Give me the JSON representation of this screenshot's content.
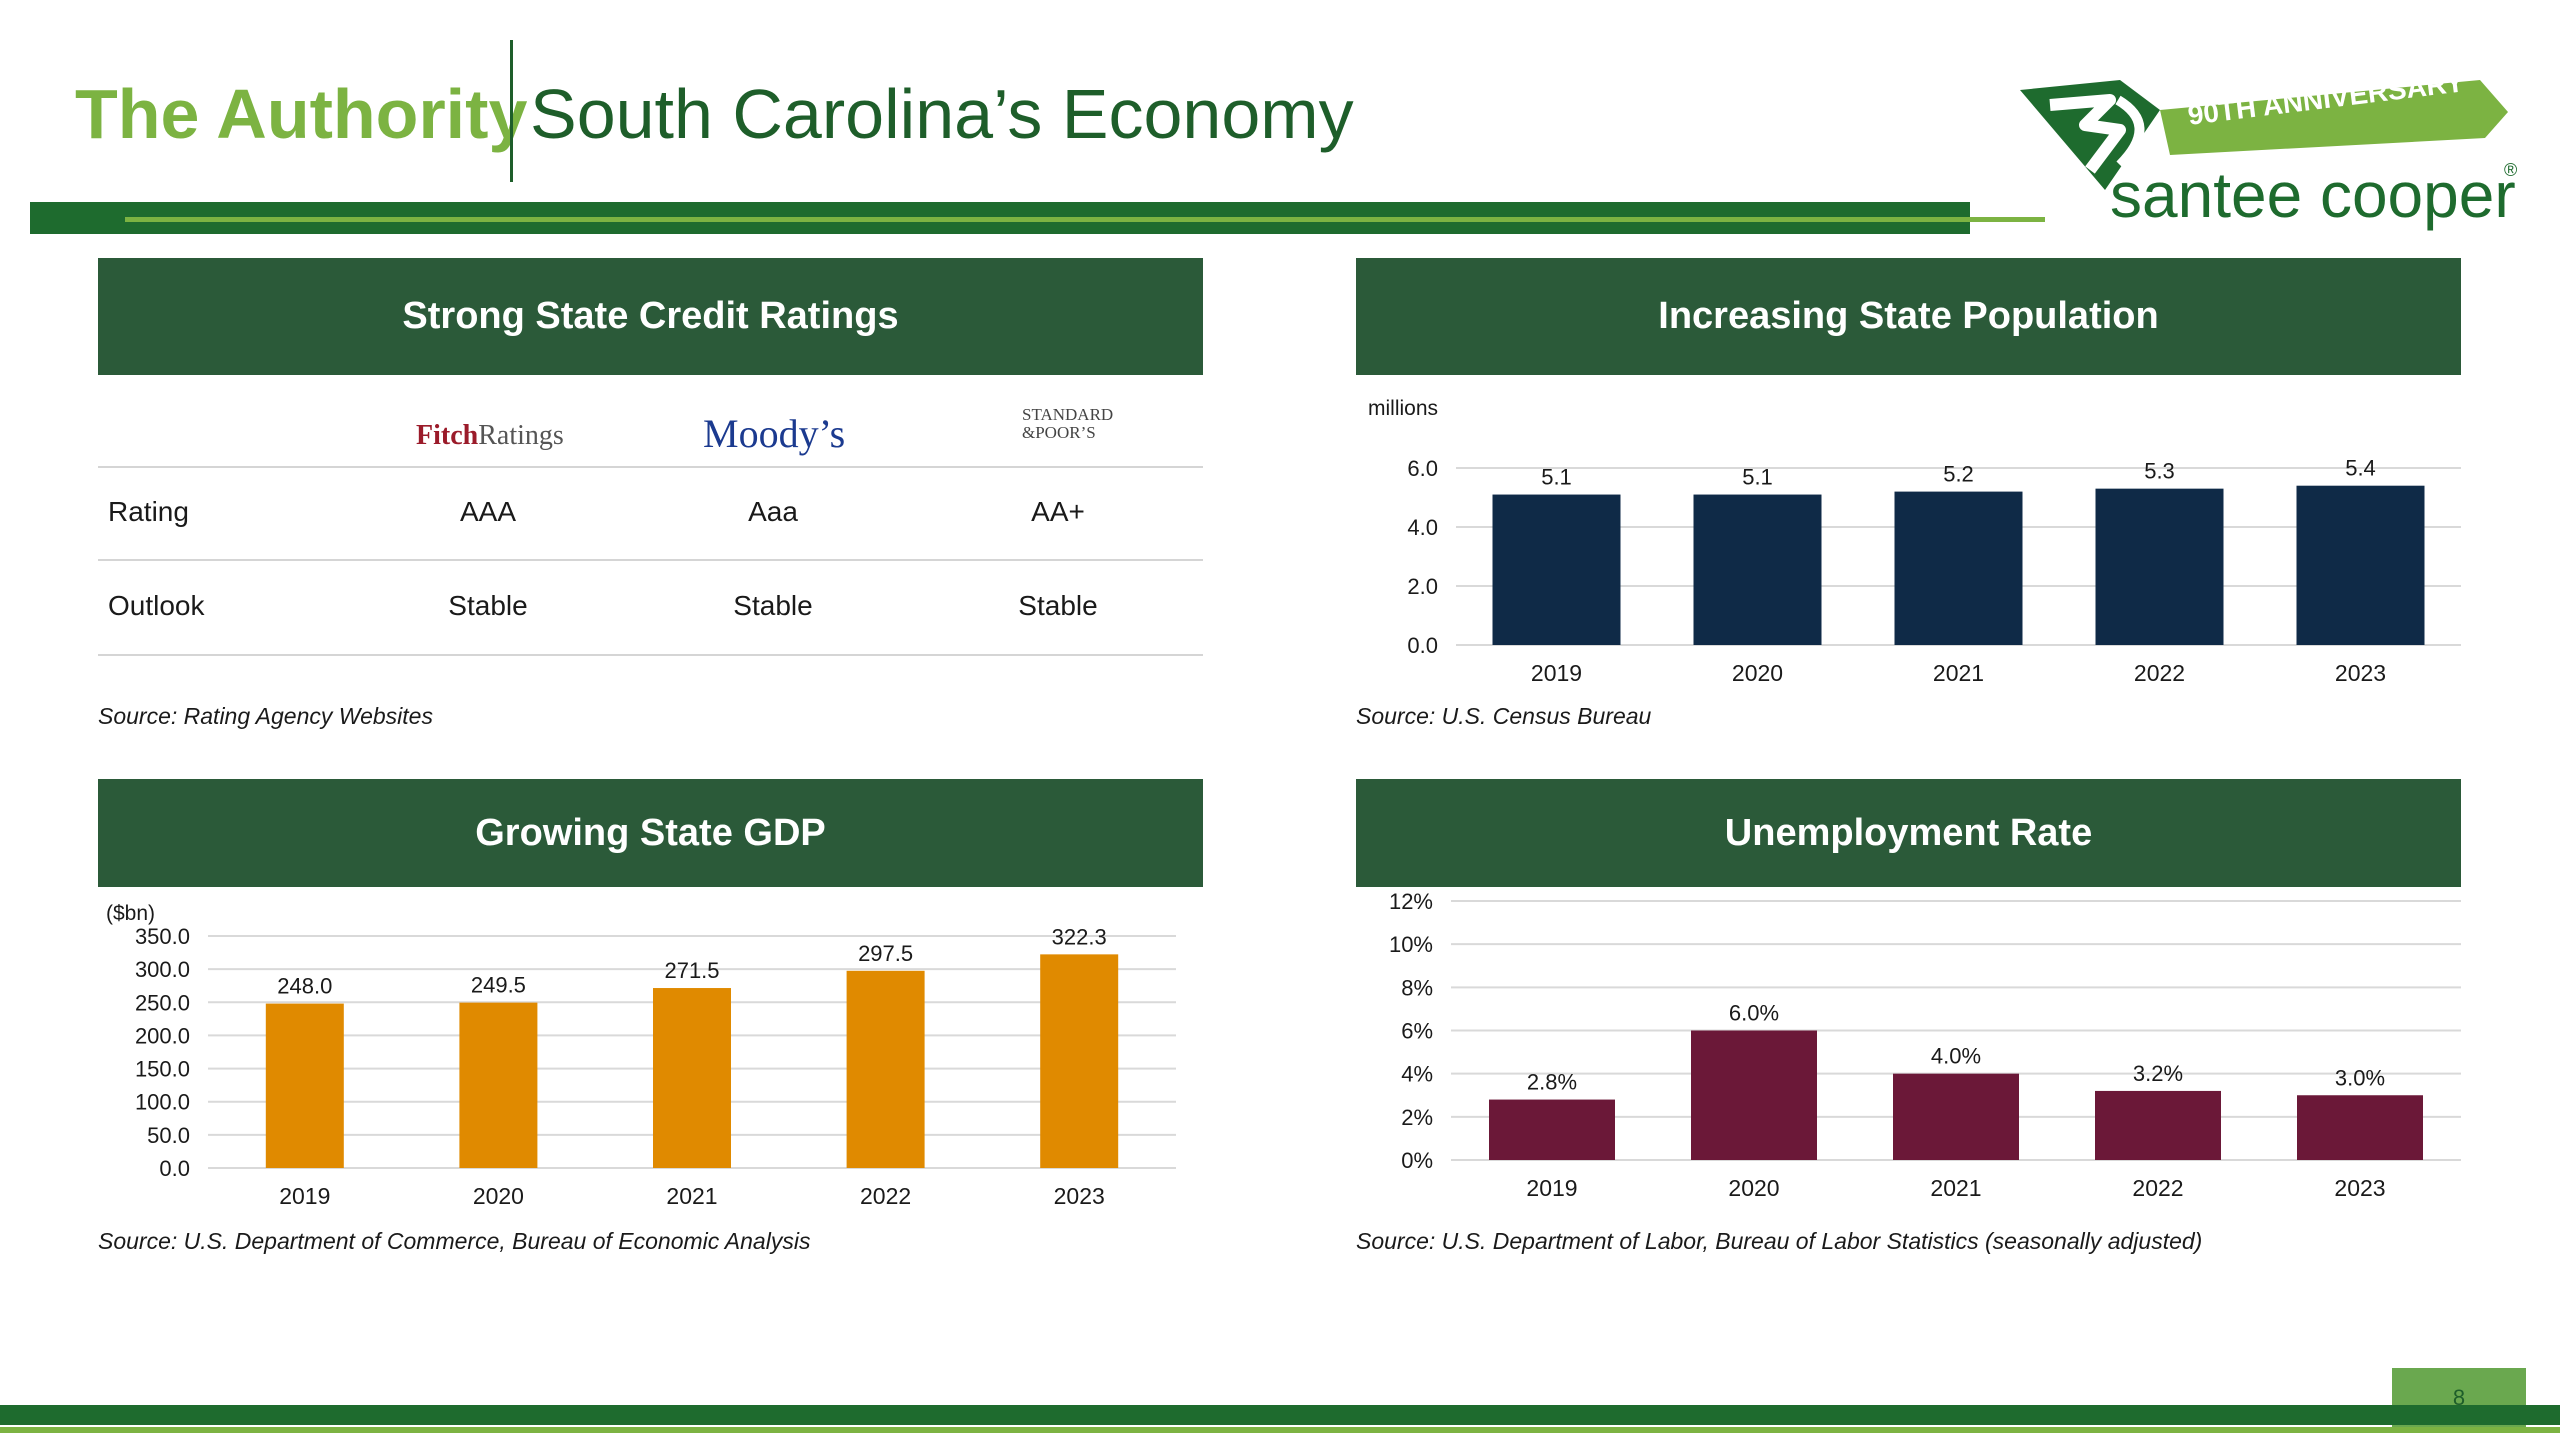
{
  "header": {
    "brand": "The Authority",
    "title": "South Carolina’s Economy"
  },
  "logo": {
    "ribbon": "90TH ANNIVERSARY",
    "name": "santee cooper",
    "reg": "®",
    "colors": {
      "green": "#1e6b2e",
      "light_green": "#7cb342"
    }
  },
  "panels": {
    "credit": {
      "title": "Strong State Credit Ratings",
      "agencies": {
        "fitch_a": "Fitch",
        "fitch_b": "Ratings",
        "moodys": "Moody’s",
        "sp_line1": "STANDARD",
        "sp_line2": "&POOR’S"
      },
      "rows": [
        {
          "label": "Rating",
          "values": [
            "AAA",
            "Aaa",
            "AA+"
          ]
        },
        {
          "label": "Outlook",
          "values": [
            "Stable",
            "Stable",
            "Stable"
          ]
        }
      ],
      "source": "Source: Rating Agency Websites"
    },
    "population": {
      "title": "Increasing State Population",
      "source": "Source: U.S. Census Bureau"
    },
    "gdp": {
      "title": "Growing State GDP",
      "source": "Source: U.S. Department of Commerce, Bureau of Economic Analysis"
    },
    "unemployment": {
      "title": "Unemployment Rate",
      "source": "Source: U.S. Department of Labor, Bureau of Labor Statistics (seasonally adjusted)"
    }
  },
  "page_number": "8",
  "chart_data": [
    {
      "id": "population",
      "type": "bar",
      "title": "Increasing State Population",
      "ylabel": "millions",
      "categories": [
        "2019",
        "2020",
        "2021",
        "2022",
        "2023"
      ],
      "values": [
        5.1,
        5.1,
        5.2,
        5.3,
        5.4
      ],
      "value_labels": [
        "5.1",
        "5.1",
        "5.2",
        "5.3",
        "5.4"
      ],
      "ylim": [
        0,
        6
      ],
      "yticks": [
        0,
        2,
        4,
        6
      ],
      "ytick_labels": [
        "0.0",
        "2.0",
        "4.0",
        "6.0"
      ],
      "grid": true,
      "color": "#0f2a47"
    },
    {
      "id": "gdp",
      "type": "bar",
      "title": "Growing State GDP",
      "ylabel": "($bn)",
      "categories": [
        "2019",
        "2020",
        "2021",
        "2022",
        "2023"
      ],
      "values": [
        248.0,
        249.5,
        271.5,
        297.5,
        322.3
      ],
      "value_labels": [
        "248.0",
        "249.5",
        "271.5",
        "297.5",
        "322.3"
      ],
      "ylim": [
        0,
        350
      ],
      "yticks": [
        0,
        50,
        100,
        150,
        200,
        250,
        300,
        350
      ],
      "ytick_labels": [
        "0.0",
        "50.0",
        "100.0",
        "150.0",
        "200.0",
        "250.0",
        "300.0",
        "350.0"
      ],
      "grid": true,
      "color": "#e08a00"
    },
    {
      "id": "unemployment",
      "type": "bar",
      "title": "Unemployment Rate",
      "ylabel": "",
      "categories": [
        "2019",
        "2020",
        "2021",
        "2022",
        "2023"
      ],
      "values": [
        2.8,
        6.0,
        4.0,
        3.2,
        3.0
      ],
      "value_labels": [
        "2.8%",
        "6.0%",
        "4.0%",
        "3.2%",
        "3.0%"
      ],
      "ylim": [
        0,
        12
      ],
      "yticks": [
        0,
        2,
        4,
        6,
        8,
        10,
        12
      ],
      "ytick_labels": [
        "0%",
        "2%",
        "4%",
        "6%",
        "8%",
        "10%",
        "12%"
      ],
      "grid": true,
      "color": "#6b1838"
    }
  ]
}
